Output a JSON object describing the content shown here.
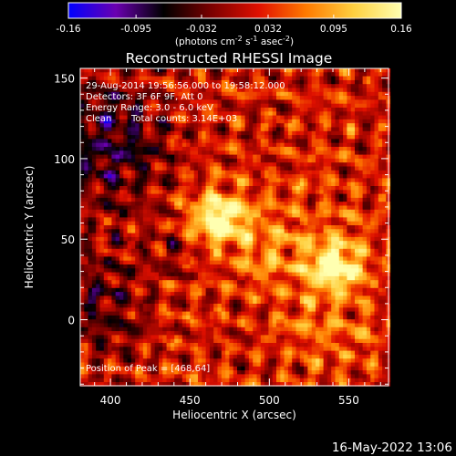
{
  "colorbar": {
    "ticks": [
      "-0.16",
      "-0.095",
      "-0.032",
      "0.032",
      "0.095",
      "0.16"
    ],
    "tick_values": [
      -0.16,
      -0.095,
      -0.032,
      0.032,
      0.095,
      0.16
    ],
    "range": [
      -0.16,
      0.16
    ],
    "unit_label_pre": "(photons cm",
    "unit_exp1": "-2",
    "unit_mid1": " s",
    "unit_exp2": "-1",
    "unit_mid2": " asec",
    "unit_exp3": "-2",
    "unit_post": ")",
    "colormap": [
      "#0000ff",
      "#6a00b0",
      "#000000",
      "#7a0000",
      "#e01000",
      "#ff7a00",
      "#ffd040",
      "#ffffb0"
    ]
  },
  "chart_data": {
    "type": "heatmap",
    "title": "Reconstructed RHESSI Image",
    "xlabel": "Heliocentric X (arcsec)",
    "ylabel": "Heliocentric Y (arcsec)",
    "xlim": [
      381,
      575
    ],
    "ylim": [
      -41,
      156
    ],
    "x_ticks": [
      400,
      450,
      500,
      550
    ],
    "y_ticks": [
      0,
      50,
      100,
      150
    ],
    "annotations": [
      "29-Aug-2014 19:56:56.000 to 19:58:12.000",
      "Detectors: 3F 6F 9F, Att 0",
      "Energy Range: 3.0 - 6.0 keV",
      "Clean",
      "Total counts: 3.14E+03"
    ],
    "peak_label": "Position of Peak = [468,64]",
    "peaks": [
      {
        "x": 468,
        "y": 64,
        "value": 0.16
      },
      {
        "x": 542,
        "y": 33,
        "value": 0.15
      }
    ]
  },
  "footer": {
    "timestamp": "16-May-2022 13:06"
  }
}
